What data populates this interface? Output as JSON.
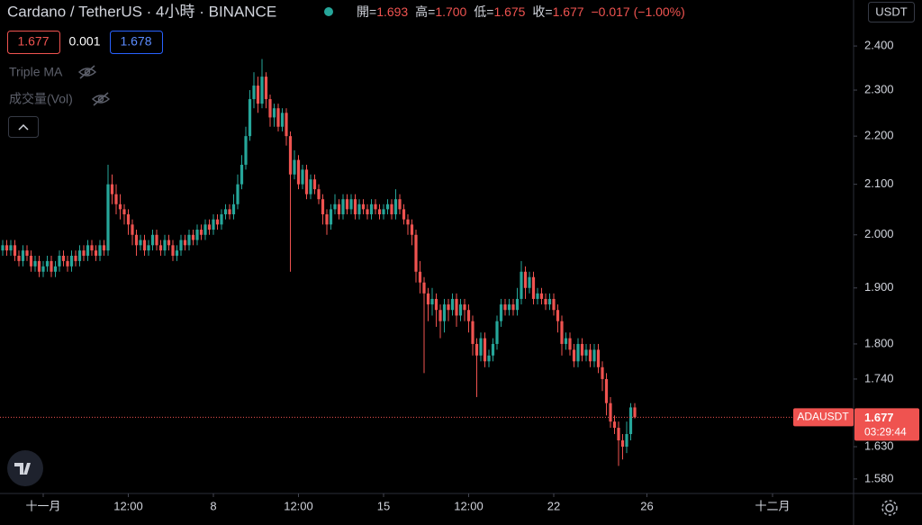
{
  "header": {
    "title": "Cardano / TetherUS · 4小時 · BINANCE",
    "ohlc_labels": [
      "開=",
      "高=",
      "低=",
      "收="
    ],
    "ohlc_values": [
      "1.693",
      "1.700",
      "1.675",
      "1.677"
    ],
    "change": "−0.017 (−1.00%)",
    "bid": "1.677",
    "spread": "0.001",
    "ask": "1.678"
  },
  "indicators": [
    "Triple MA",
    "成交量(Vol)"
  ],
  "currency": "USDT",
  "chart_data": {
    "type": "candlestick",
    "symbol": "ADAUSDT",
    "last_price_label": "1.677",
    "countdown": "03:29:44",
    "log_scale": true,
    "grid": false,
    "up_color": "#26a69a",
    "down_color": "#ef5350",
    "xlim": [
      -0.667,
      210
    ],
    "xticks": [
      {
        "value": 10,
        "label": "十一月"
      },
      {
        "value": 31,
        "label": "12:00"
      },
      {
        "value": 52,
        "label": "8"
      },
      {
        "value": 73,
        "label": "12:00"
      },
      {
        "value": 94,
        "label": "15"
      },
      {
        "value": 115,
        "label": "12:00"
      },
      {
        "value": 136,
        "label": "22"
      },
      {
        "value": 159,
        "label": "26"
      },
      {
        "value": 190,
        "label": "十二月"
      }
    ],
    "ylim": [
      1.558,
      2.509
    ],
    "yticks": [
      {
        "value": 2.4,
        "label": "2.400"
      },
      {
        "value": 2.3,
        "label": "2.300"
      },
      {
        "value": 2.2,
        "label": "2.200"
      },
      {
        "value": 2.1,
        "label": "2.100"
      },
      {
        "value": 2.0,
        "label": "2.000"
      },
      {
        "value": 1.9,
        "label": "1.900"
      },
      {
        "value": 1.8,
        "label": "1.800"
      },
      {
        "value": 1.74,
        "label": "1.740"
      },
      {
        "value": 1.63,
        "label": "1.630"
      },
      {
        "value": 1.58,
        "label": "1.580"
      }
    ],
    "ohlc": [
      [
        1.97,
        1.99,
        1.96,
        1.98
      ],
      [
        1.98,
        1.99,
        1.96,
        1.97
      ],
      [
        1.97,
        1.99,
        1.96,
        1.98
      ],
      [
        1.98,
        1.99,
        1.95,
        1.96
      ],
      [
        1.96,
        1.97,
        1.94,
        1.95
      ],
      [
        1.95,
        1.98,
        1.94,
        1.97
      ],
      [
        1.97,
        1.98,
        1.95,
        1.96
      ],
      [
        1.96,
        1.97,
        1.93,
        1.94
      ],
      [
        1.94,
        1.96,
        1.93,
        1.95
      ],
      [
        1.95,
        1.96,
        1.92,
        1.93
      ],
      [
        1.93,
        1.95,
        1.92,
        1.94
      ],
      [
        1.94,
        1.96,
        1.93,
        1.95
      ],
      [
        1.95,
        1.96,
        1.92,
        1.93
      ],
      [
        1.93,
        1.95,
        1.92,
        1.94
      ],
      [
        1.94,
        1.97,
        1.93,
        1.96
      ],
      [
        1.96,
        1.97,
        1.94,
        1.95
      ],
      [
        1.95,
        1.96,
        1.93,
        1.94
      ],
      [
        1.94,
        1.97,
        1.93,
        1.96
      ],
      [
        1.96,
        1.97,
        1.94,
        1.95
      ],
      [
        1.95,
        1.98,
        1.94,
        1.97
      ],
      [
        1.97,
        1.98,
        1.95,
        1.96
      ],
      [
        1.96,
        1.99,
        1.95,
        1.98
      ],
      [
        1.98,
        1.99,
        1.96,
        1.97
      ],
      [
        1.97,
        1.98,
        1.95,
        1.96
      ],
      [
        1.96,
        1.99,
        1.95,
        1.98
      ],
      [
        1.98,
        1.99,
        1.96,
        1.97
      ],
      [
        1.97,
        2.14,
        1.96,
        2.1
      ],
      [
        2.1,
        2.12,
        2.06,
        2.08
      ],
      [
        2.08,
        2.1,
        2.04,
        2.06
      ],
      [
        2.06,
        2.08,
        2.03,
        2.05
      ],
      [
        2.05,
        2.06,
        2.02,
        2.04
      ],
      [
        2.04,
        2.05,
        2.0,
        2.02
      ],
      [
        2.02,
        2.03,
        1.98,
        2.0
      ],
      [
        2.0,
        2.01,
        1.96,
        1.98
      ],
      [
        1.98,
        2.0,
        1.97,
        1.99
      ],
      [
        1.99,
        2.0,
        1.96,
        1.97
      ],
      [
        1.97,
        1.99,
        1.96,
        1.98
      ],
      [
        1.98,
        2.01,
        1.97,
        2.0
      ],
      [
        2.0,
        2.01,
        1.97,
        1.98
      ],
      [
        1.98,
        1.99,
        1.96,
        1.97
      ],
      [
        1.97,
        2.0,
        1.96,
        1.99
      ],
      [
        1.99,
        2.0,
        1.97,
        1.98
      ],
      [
        1.98,
        1.99,
        1.95,
        1.96
      ],
      [
        1.96,
        1.98,
        1.95,
        1.97
      ],
      [
        1.97,
        2.0,
        1.96,
        1.99
      ],
      [
        1.99,
        2.0,
        1.97,
        1.98
      ],
      [
        1.98,
        2.01,
        1.97,
        2.0
      ],
      [
        2.0,
        2.01,
        1.98,
        1.99
      ],
      [
        1.99,
        2.02,
        1.98,
        2.01
      ],
      [
        2.01,
        2.02,
        1.99,
        2.0
      ],
      [
        2.0,
        2.03,
        1.99,
        2.02
      ],
      [
        2.02,
        2.03,
        2.0,
        2.01
      ],
      [
        2.01,
        2.04,
        2.0,
        2.03
      ],
      [
        2.03,
        2.04,
        2.01,
        2.02
      ],
      [
        2.02,
        2.05,
        2.01,
        2.04
      ],
      [
        2.04,
        2.06,
        2.03,
        2.05
      ],
      [
        2.05,
        2.06,
        2.03,
        2.04
      ],
      [
        2.04,
        2.08,
        2.03,
        2.06
      ],
      [
        2.06,
        2.12,
        2.05,
        2.1
      ],
      [
        2.1,
        2.16,
        2.09,
        2.14
      ],
      [
        2.14,
        2.22,
        2.13,
        2.2
      ],
      [
        2.2,
        2.3,
        2.19,
        2.28
      ],
      [
        2.28,
        2.34,
        2.26,
        2.31
      ],
      [
        2.31,
        2.33,
        2.25,
        2.27
      ],
      [
        2.27,
        2.37,
        2.26,
        2.33
      ],
      [
        2.33,
        2.34,
        2.26,
        2.28
      ],
      [
        2.28,
        2.29,
        2.22,
        2.24
      ],
      [
        2.24,
        2.27,
        2.22,
        2.26
      ],
      [
        2.26,
        2.27,
        2.21,
        2.22
      ],
      [
        2.22,
        2.26,
        2.21,
        2.25
      ],
      [
        2.25,
        2.26,
        2.18,
        2.2
      ],
      [
        2.2,
        2.21,
        1.93,
        2.12
      ],
      [
        2.12,
        2.17,
        2.11,
        2.15
      ],
      [
        2.15,
        2.16,
        2.09,
        2.1
      ],
      [
        2.1,
        2.14,
        2.09,
        2.13
      ],
      [
        2.13,
        2.14,
        2.07,
        2.08
      ],
      [
        2.08,
        2.12,
        2.07,
        2.11
      ],
      [
        2.11,
        2.12,
        2.08,
        2.09
      ],
      [
        2.09,
        2.1,
        2.06,
        2.07
      ],
      [
        2.07,
        2.08,
        2.02,
        2.04
      ],
      [
        2.04,
        2.05,
        2.0,
        2.02
      ],
      [
        2.02,
        2.06,
        2.01,
        2.05
      ],
      [
        2.05,
        2.08,
        2.04,
        2.06
      ],
      [
        2.06,
        2.07,
        2.03,
        2.04
      ],
      [
        2.04,
        2.08,
        2.03,
        2.07
      ],
      [
        2.07,
        2.08,
        2.04,
        2.05
      ],
      [
        2.05,
        2.08,
        2.04,
        2.07
      ],
      [
        2.07,
        2.08,
        2.03,
        2.04
      ],
      [
        2.04,
        2.07,
        2.03,
        2.06
      ],
      [
        2.06,
        2.07,
        2.04,
        2.05
      ],
      [
        2.05,
        2.06,
        2.03,
        2.04
      ],
      [
        2.04,
        2.07,
        2.03,
        2.06
      ],
      [
        2.06,
        2.07,
        2.04,
        2.05
      ],
      [
        2.05,
        2.06,
        2.03,
        2.04
      ],
      [
        2.04,
        2.06,
        2.03,
        2.05
      ],
      [
        2.05,
        2.07,
        2.04,
        2.06
      ],
      [
        2.06,
        2.07,
        2.03,
        2.04
      ],
      [
        2.04,
        2.09,
        2.03,
        2.07
      ],
      [
        2.07,
        2.08,
        2.04,
        2.05
      ],
      [
        2.05,
        2.06,
        2.02,
        2.03
      ],
      [
        2.03,
        2.04,
        2.0,
        2.02
      ],
      [
        2.02,
        2.03,
        1.98,
        2.0
      ],
      [
        2.0,
        2.01,
        1.91,
        1.93
      ],
      [
        1.93,
        1.95,
        1.89,
        1.91
      ],
      [
        1.91,
        1.92,
        1.75,
        1.89
      ],
      [
        1.89,
        1.9,
        1.84,
        1.87
      ],
      [
        1.87,
        1.9,
        1.85,
        1.88
      ],
      [
        1.88,
        1.89,
        1.83,
        1.86
      ],
      [
        1.86,
        1.87,
        1.81,
        1.84
      ],
      [
        1.84,
        1.88,
        1.82,
        1.87
      ],
      [
        1.87,
        1.88,
        1.84,
        1.86
      ],
      [
        1.86,
        1.89,
        1.85,
        1.88
      ],
      [
        1.88,
        1.89,
        1.83,
        1.85
      ],
      [
        1.85,
        1.88,
        1.84,
        1.87
      ],
      [
        1.87,
        1.88,
        1.84,
        1.86
      ],
      [
        1.86,
        1.87,
        1.82,
        1.84
      ],
      [
        1.84,
        1.85,
        1.78,
        1.8
      ],
      [
        1.8,
        1.81,
        1.71,
        1.78
      ],
      [
        1.78,
        1.82,
        1.77,
        1.81
      ],
      [
        1.81,
        1.82,
        1.76,
        1.77
      ],
      [
        1.77,
        1.79,
        1.76,
        1.78
      ],
      [
        1.78,
        1.81,
        1.77,
        1.8
      ],
      [
        1.8,
        1.85,
        1.79,
        1.84
      ],
      [
        1.84,
        1.88,
        1.83,
        1.87
      ],
      [
        1.87,
        1.88,
        1.85,
        1.86
      ],
      [
        1.86,
        1.88,
        1.85,
        1.87
      ],
      [
        1.87,
        1.88,
        1.85,
        1.86
      ],
      [
        1.86,
        1.9,
        1.85,
        1.88
      ],
      [
        1.88,
        1.95,
        1.87,
        1.93
      ],
      [
        1.93,
        1.94,
        1.88,
        1.9
      ],
      [
        1.9,
        1.93,
        1.89,
        1.92
      ],
      [
        1.92,
        1.93,
        1.87,
        1.88
      ],
      [
        1.88,
        1.9,
        1.87,
        1.89
      ],
      [
        1.89,
        1.9,
        1.87,
        1.88
      ],
      [
        1.88,
        1.89,
        1.86,
        1.87
      ],
      [
        1.87,
        1.89,
        1.86,
        1.88
      ],
      [
        1.88,
        1.89,
        1.85,
        1.86
      ],
      [
        1.86,
        1.87,
        1.82,
        1.84
      ],
      [
        1.84,
        1.85,
        1.78,
        1.8
      ],
      [
        1.8,
        1.82,
        1.79,
        1.81
      ],
      [
        1.81,
        1.82,
        1.78,
        1.79
      ],
      [
        1.79,
        1.8,
        1.76,
        1.77
      ],
      [
        1.77,
        1.81,
        1.76,
        1.8
      ],
      [
        1.8,
        1.81,
        1.77,
        1.78
      ],
      [
        1.78,
        1.8,
        1.77,
        1.79
      ],
      [
        1.79,
        1.8,
        1.76,
        1.77
      ],
      [
        1.77,
        1.8,
        1.76,
        1.79
      ],
      [
        1.79,
        1.8,
        1.75,
        1.76
      ],
      [
        1.76,
        1.77,
        1.72,
        1.74
      ],
      [
        1.74,
        1.75,
        1.68,
        1.7
      ],
      [
        1.7,
        1.71,
        1.66,
        1.67
      ],
      [
        1.67,
        1.68,
        1.65,
        1.66
      ],
      [
        1.66,
        1.67,
        1.6,
        1.64
      ],
      [
        1.64,
        1.65,
        1.61,
        1.63
      ],
      [
        1.63,
        1.67,
        1.62,
        1.65
      ],
      [
        1.65,
        1.7,
        1.64,
        1.693
      ],
      [
        1.693,
        1.7,
        1.675,
        1.677
      ]
    ]
  }
}
